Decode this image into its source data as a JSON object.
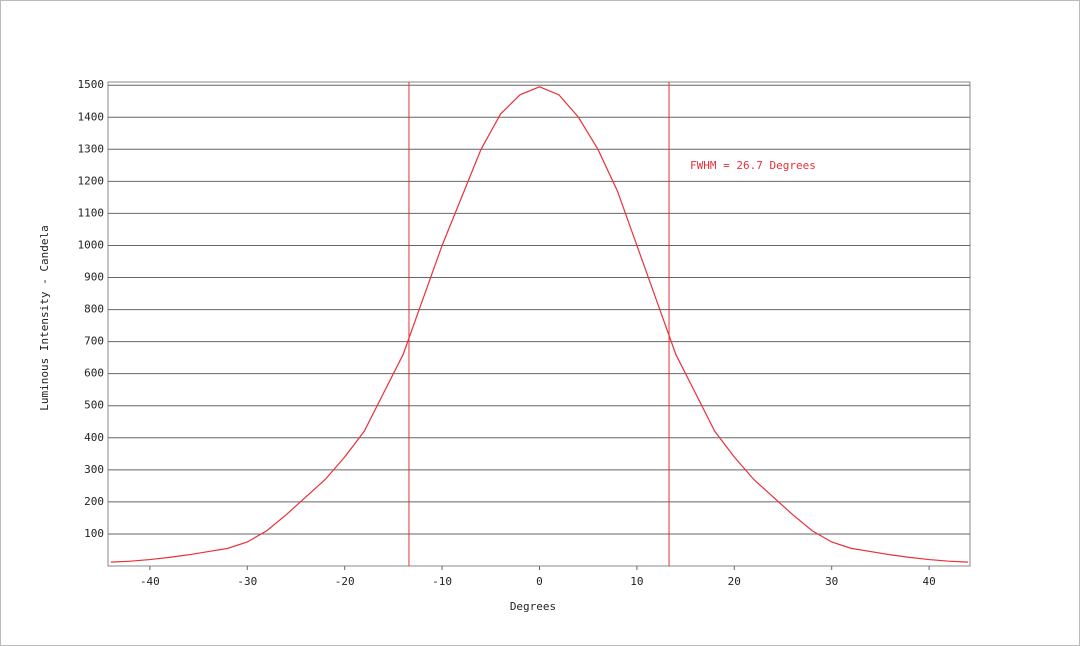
{
  "chart_data": {
    "type": "line",
    "x_label": "Degrees",
    "y_label": "Luminous Intensity - Candela",
    "annotation": "FWHM = 26.7 Degrees",
    "fwhm_lines": [
      -13.4,
      13.3
    ],
    "x": [
      -44,
      -42,
      -40,
      -38,
      -36,
      -34,
      -32,
      -30,
      -28,
      -26,
      -24,
      -22,
      -20,
      -18,
      -16,
      -14,
      -12,
      -10,
      -8,
      -6,
      -4,
      -2,
      0,
      2,
      4,
      6,
      8,
      10,
      12,
      14,
      16,
      18,
      20,
      22,
      24,
      26,
      28,
      30,
      32,
      34,
      36,
      38,
      40,
      42,
      44
    ],
    "series": [
      {
        "color": "#e8303a",
        "values": [
          12,
          15,
          20,
          27,
          35,
          45,
          55,
          75,
          110,
          160,
          215,
          270,
          340,
          420,
          540,
          660,
          830,
          1000,
          1150,
          1300,
          1410,
          1470,
          1495,
          1470,
          1400,
          1300,
          1170,
          1000,
          830,
          660,
          540,
          420,
          340,
          270,
          215,
          160,
          110,
          75,
          55,
          45,
          35,
          27,
          20,
          15,
          12
        ]
      }
    ],
    "xlim": [
      -44.3,
      44.2
    ],
    "ylim": [
      0,
      1510
    ],
    "xticks": [
      -40,
      -30,
      -20,
      -10,
      0,
      10,
      20,
      30,
      40
    ],
    "yticks": [
      100,
      200,
      300,
      400,
      500,
      600,
      700,
      800,
      900,
      1000,
      1100,
      1200,
      1300,
      1400,
      1500
    ],
    "grid": true
  }
}
